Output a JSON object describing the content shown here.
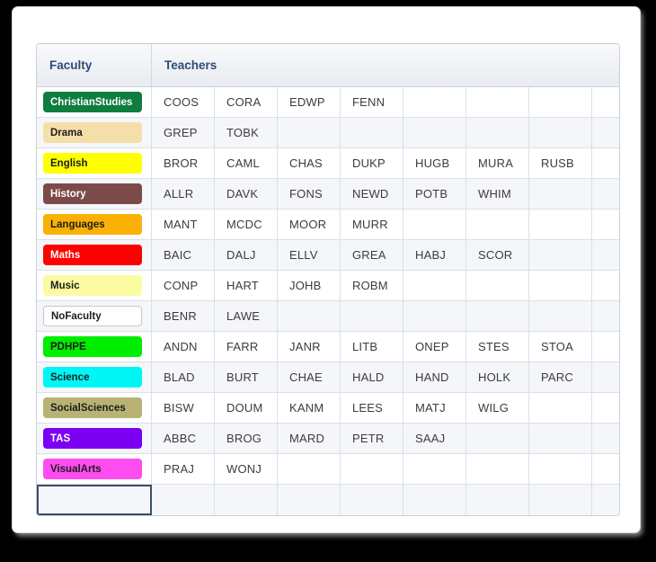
{
  "table": {
    "header": {
      "faculty": "Faculty",
      "teachers": "Teachers"
    },
    "teacher_slots": 7,
    "rows": [
      {
        "faculty": "ChristianStudies",
        "bg": "#0f7d40",
        "fg": "#ffffff",
        "outlined": false,
        "focused": false,
        "teachers": [
          "COOS",
          "CORA",
          "EDWP",
          "FENN"
        ]
      },
      {
        "faculty": "Drama",
        "bg": "#f5dfa9",
        "fg": "#1c1c1c",
        "outlined": false,
        "focused": false,
        "teachers": [
          "GREP",
          "TOBK"
        ]
      },
      {
        "faculty": "English",
        "bg": "#ffff00",
        "fg": "#1c1c1c",
        "outlined": false,
        "focused": false,
        "teachers": [
          "BROR",
          "CAML",
          "CHAS",
          "DUKP",
          "HUGB",
          "MURA",
          "RUSB"
        ]
      },
      {
        "faculty": "History",
        "bg": "#7d4a4a",
        "fg": "#ffffff",
        "outlined": false,
        "focused": false,
        "teachers": [
          "ALLR",
          "DAVK",
          "FONS",
          "NEWD",
          "POTB",
          "WHIM"
        ]
      },
      {
        "faculty": "Languages",
        "bg": "#fbb104",
        "fg": "#1c1c1c",
        "outlined": false,
        "focused": false,
        "teachers": [
          "MANT",
          "MCDC",
          "MOOR",
          "MURR"
        ]
      },
      {
        "faculty": "Maths",
        "bg": "#fe0000",
        "fg": "#ffffff",
        "outlined": false,
        "focused": false,
        "teachers": [
          "BAIC",
          "DALJ",
          "ELLV",
          "GREA",
          "HABJ",
          "SCOR"
        ]
      },
      {
        "faculty": "Music",
        "bg": "#fbfba2",
        "fg": "#1c1c1c",
        "outlined": false,
        "focused": false,
        "teachers": [
          "CONP",
          "HART",
          "JOHB",
          "ROBM"
        ]
      },
      {
        "faculty": "NoFaculty",
        "bg": "#ffffff",
        "fg": "#1c1c1c",
        "outlined": true,
        "focused": false,
        "teachers": [
          "BENR",
          "LAWE"
        ]
      },
      {
        "faculty": "PDHPE",
        "bg": "#00ee00",
        "fg": "#1c1c1c",
        "outlined": false,
        "focused": false,
        "teachers": [
          "ANDN",
          "FARR",
          "JANR",
          "LITB",
          "ONEP",
          "STES",
          "STOA"
        ]
      },
      {
        "faculty": "Science",
        "bg": "#00f5f5",
        "fg": "#1c1c1c",
        "outlined": false,
        "focused": false,
        "teachers": [
          "BLAD",
          "BURT",
          "CHAE",
          "HALD",
          "HAND",
          "HOLK",
          "PARC"
        ]
      },
      {
        "faculty": "SocialSciences",
        "bg": "#b9b275",
        "fg": "#1c1c1c",
        "outlined": false,
        "focused": false,
        "teachers": [
          "BISW",
          "DOUM",
          "KANM",
          "LEES",
          "MATJ",
          "WILG"
        ]
      },
      {
        "faculty": "TAS",
        "bg": "#7b00f2",
        "fg": "#ffffff",
        "outlined": false,
        "focused": false,
        "teachers": [
          "ABBC",
          "BROG",
          "MARD",
          "PETR",
          "SAAJ"
        ]
      },
      {
        "faculty": "VisualArts",
        "bg": "#fe4cf0",
        "fg": "#1c1c1c",
        "outlined": false,
        "focused": false,
        "teachers": [
          "PRAJ",
          "WONJ"
        ]
      },
      {
        "faculty": "",
        "bg": "",
        "fg": "",
        "outlined": false,
        "focused": true,
        "teachers": []
      }
    ]
  },
  "colors": {
    "page_background": "#000000",
    "card_background": "#ffffff",
    "grid_border": "#c7cfda",
    "cell_border": "#dbe0e7",
    "stripe_background": "#f4f6f9",
    "header_text": "#2d4a74",
    "teacher_text": "#3c3c3c",
    "focused_cell_outline": "#3a4e67"
  }
}
